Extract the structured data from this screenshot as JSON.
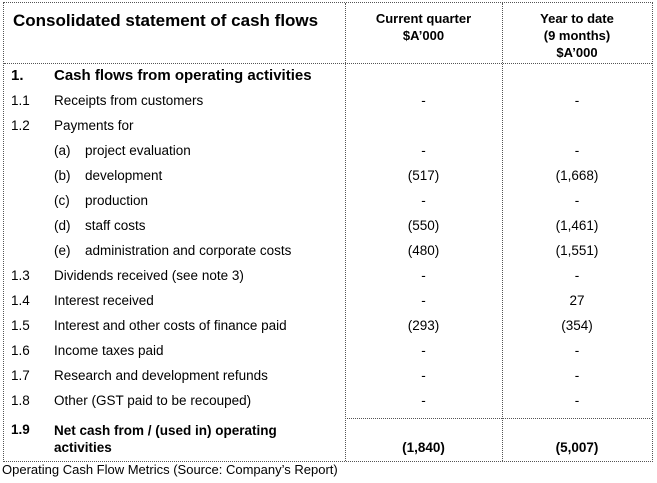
{
  "header": {
    "title": "Consolidated statement of cash flows",
    "col1": [
      "Current quarter",
      "$A’000"
    ],
    "col2": [
      "Year to date",
      "(9 months)",
      "$A’000"
    ]
  },
  "section": {
    "num": "1.",
    "label": "Cash flows from operating activities"
  },
  "rows": [
    {
      "num": "1.1",
      "label": "Receipts from customers",
      "current": "-",
      "ytd": "-"
    },
    {
      "num": "1.2",
      "label": "Payments for",
      "current": "",
      "ytd": ""
    },
    {
      "letter": "(a)",
      "label": "project evaluation",
      "current": "-",
      "ytd": "-"
    },
    {
      "letter": "(b)",
      "label": "development",
      "current": "(517)",
      "ytd": "(1,668)"
    },
    {
      "letter": "(c)",
      "label": "production",
      "current": "-",
      "ytd": "-"
    },
    {
      "letter": "(d)",
      "label": "staff costs",
      "current": "(550)",
      "ytd": "(1,461)"
    },
    {
      "letter": "(e)",
      "label": "administration and corporate costs",
      "current": "(480)",
      "ytd": "(1,551)"
    },
    {
      "num": "1.3",
      "label": "Dividends received (see note 3)",
      "current": "-",
      "ytd": "-"
    },
    {
      "num": "1.4",
      "label": "Interest received",
      "current": "-",
      "ytd": "27"
    },
    {
      "num": "1.5",
      "label": "Interest and other costs of finance paid",
      "current": "(293)",
      "ytd": "(354)"
    },
    {
      "num": "1.6",
      "label": "Income taxes paid",
      "current": "-",
      "ytd": "-"
    },
    {
      "num": "1.7",
      "label": "Research and development refunds",
      "current": "-",
      "ytd": "-"
    },
    {
      "num": "1.8",
      "label": "Other (GST paid to be recouped)",
      "current": "-",
      "ytd": "-"
    }
  ],
  "total": {
    "num": "1.9",
    "label": [
      "Net cash from / (used in) operating",
      "activities"
    ],
    "current": "(1,840)",
    "ytd": "(5,007)"
  },
  "caption": "Operating Cash Flow Metrics (Source: Company’s Report)"
}
